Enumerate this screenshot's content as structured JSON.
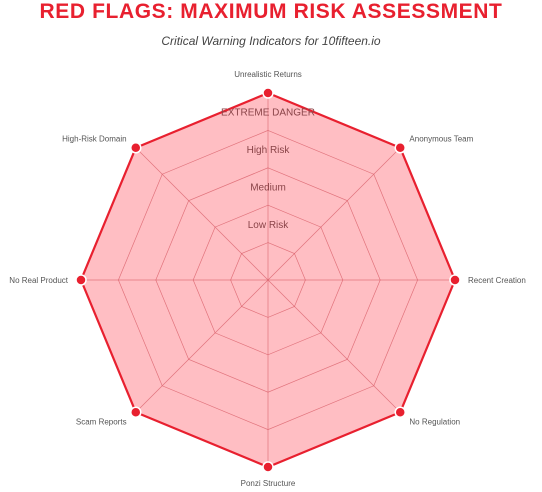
{
  "chart_data": {
    "type": "radar",
    "title": "RED FLAGS: MAXIMUM RISK ASSESSMENT",
    "subtitle": "Critical Warning Indicators for 10fifteen.io",
    "axes": [
      "Unrealistic Returns",
      "Anonymous Team",
      "Recent Creation",
      "No Regulation",
      "Ponzi Structure",
      "Scam Reports",
      "No Real Product",
      "High-Risk Domain"
    ],
    "series": [
      {
        "values": [
          10,
          10,
          10,
          10,
          10,
          10,
          10,
          10
        ]
      }
    ],
    "r_range": [
      0,
      10
    ],
    "ring_levels": [
      2,
      4,
      6,
      8,
      10
    ],
    "ring_labels": [
      {
        "value": 3,
        "label": "Low Risk"
      },
      {
        "value": 5,
        "label": "Medium"
      },
      {
        "value": 7,
        "label": "High Risk"
      },
      {
        "value": 9,
        "label": "EXTREME DANGER"
      }
    ],
    "colors": {
      "line": "#e8202f",
      "fill": "#ffb3b8",
      "grid": "#d9606a",
      "title": "#e8202f"
    }
  }
}
